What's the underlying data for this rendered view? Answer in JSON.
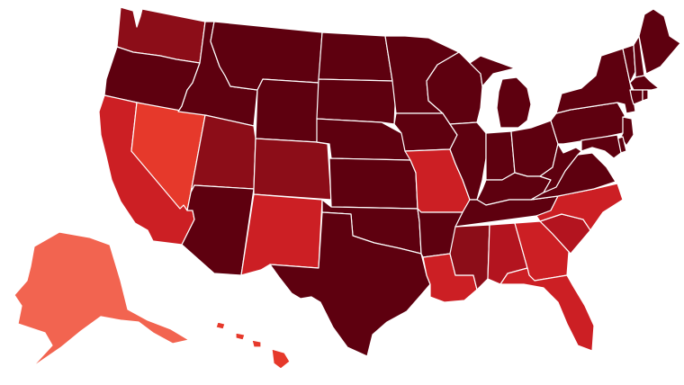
{
  "map": {
    "palette": {
      "darkest": "#5e000f",
      "dark": "#8c0d18",
      "medium": "#b3141f",
      "red": "#cc1f24",
      "bright": "#e6392b",
      "light": "#f26450"
    },
    "states": [
      {
        "id": "WA",
        "level": "dark"
      },
      {
        "id": "OR",
        "level": "darkest"
      },
      {
        "id": "CA",
        "level": "red"
      },
      {
        "id": "NV",
        "level": "bright"
      },
      {
        "id": "ID",
        "level": "darkest"
      },
      {
        "id": "MT",
        "level": "darkest"
      },
      {
        "id": "WY",
        "level": "darkest"
      },
      {
        "id": "UT",
        "level": "dark"
      },
      {
        "id": "AZ",
        "level": "darkest"
      },
      {
        "id": "CO",
        "level": "dark"
      },
      {
        "id": "NM",
        "level": "red"
      },
      {
        "id": "ND",
        "level": "darkest"
      },
      {
        "id": "SD",
        "level": "darkest"
      },
      {
        "id": "NE",
        "level": "darkest"
      },
      {
        "id": "KS",
        "level": "darkest"
      },
      {
        "id": "OK",
        "level": "darkest"
      },
      {
        "id": "TX",
        "level": "darkest"
      },
      {
        "id": "MN",
        "level": "darkest"
      },
      {
        "id": "IA",
        "level": "darkest"
      },
      {
        "id": "MO",
        "level": "red"
      },
      {
        "id": "AR",
        "level": "darkest"
      },
      {
        "id": "LA",
        "level": "red"
      },
      {
        "id": "WI",
        "level": "darkest"
      },
      {
        "id": "IL",
        "level": "darkest"
      },
      {
        "id": "MI",
        "level": "darkest"
      },
      {
        "id": "IN",
        "level": "darkest"
      },
      {
        "id": "OH",
        "level": "darkest"
      },
      {
        "id": "KY",
        "level": "darkest"
      },
      {
        "id": "TN",
        "level": "darkest"
      },
      {
        "id": "MS",
        "level": "dark"
      },
      {
        "id": "AL",
        "level": "medium"
      },
      {
        "id": "GA",
        "level": "red"
      },
      {
        "id": "FL",
        "level": "red"
      },
      {
        "id": "SC",
        "level": "medium"
      },
      {
        "id": "NC",
        "level": "red"
      },
      {
        "id": "VA",
        "level": "darkest"
      },
      {
        "id": "WV",
        "level": "darkest"
      },
      {
        "id": "PA",
        "level": "darkest"
      },
      {
        "id": "NY",
        "level": "darkest"
      },
      {
        "id": "VT",
        "level": "darkest"
      },
      {
        "id": "NH",
        "level": "darkest"
      },
      {
        "id": "ME",
        "level": "darkest"
      },
      {
        "id": "MA",
        "level": "darkest"
      },
      {
        "id": "CT",
        "level": "darkest"
      },
      {
        "id": "RI",
        "level": "darkest"
      },
      {
        "id": "NJ",
        "level": "darkest"
      },
      {
        "id": "DE",
        "level": "darkest"
      },
      {
        "id": "MD",
        "level": "darkest"
      },
      {
        "id": "AK",
        "level": "light"
      },
      {
        "id": "HI",
        "level": "bright"
      }
    ]
  }
}
